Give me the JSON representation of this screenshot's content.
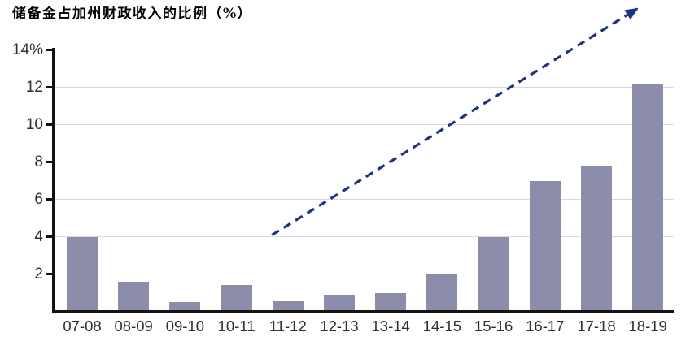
{
  "chart_data": {
    "type": "bar",
    "title": "储备金占加州财政收入的比例（%）",
    "categories": [
      "07-08",
      "08-09",
      "09-10",
      "10-11",
      "11-12",
      "12-13",
      "13-14",
      "14-15",
      "15-16",
      "16-17",
      "17-18",
      "18-19"
    ],
    "values": [
      4.0,
      1.6,
      0.5,
      1.4,
      0.55,
      0.9,
      1.0,
      2.0,
      4.0,
      7.0,
      7.8,
      12.2
    ],
    "xlabel": "",
    "ylabel": "",
    "ylim": [
      0,
      14
    ],
    "yticks": [
      2,
      4,
      6,
      8,
      10,
      12,
      14
    ],
    "ytick_labels": [
      "2",
      "4",
      "6",
      "8",
      "10",
      "12",
      "14%"
    ],
    "grid": "horizontal-light",
    "legend": "none",
    "annotations": [
      {
        "type": "dashed-trend-arrow",
        "description": "upward dashed arrow from about the 11-12 column at 4% to the upper right corner",
        "from_category_index": 3.69,
        "from_value": 4.09,
        "to_category_index": 10.79,
        "to_value": 16.2
      }
    ],
    "colors": {
      "bar": "#8c8cab",
      "gridline": "#d8d8e2",
      "axis": "#141414",
      "tick_label": "#2f2f2f",
      "arrow": "#1e3282",
      "title": "#000000",
      "background": "#ffffff"
    }
  }
}
